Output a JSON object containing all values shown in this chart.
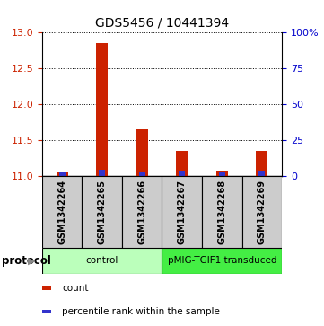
{
  "title": "GDS5456 / 10441394",
  "samples": [
    "GSM1342264",
    "GSM1342265",
    "GSM1342266",
    "GSM1342267",
    "GSM1342268",
    "GSM1342269"
  ],
  "red_values": [
    11.06,
    12.85,
    11.65,
    11.35,
    11.08,
    11.35
  ],
  "blue_values": [
    11.065,
    11.09,
    11.06,
    11.07,
    11.06,
    11.07
  ],
  "ylim": [
    11.0,
    13.0
  ],
  "yticks_left": [
    11,
    11.5,
    12,
    12.5,
    13
  ],
  "yticks_right": [
    0,
    25,
    50,
    75,
    100
  ],
  "yright_labels": [
    "0",
    "25",
    "50",
    "75",
    "100%"
  ],
  "left_color": "#cc2200",
  "right_color": "#0000cc",
  "groups": [
    {
      "label": "control",
      "indices": [
        0,
        1,
        2
      ],
      "color": "#bbffbb"
    },
    {
      "label": "pMIG-TGIF1 transduced",
      "indices": [
        3,
        4,
        5
      ],
      "color": "#44ee44"
    }
  ],
  "protocol_label": "protocol",
  "red_color": "#cc2200",
  "blue_color": "#3333cc",
  "bg_color": "#ffffff",
  "sample_bg": "#cccccc",
  "legend_items": [
    {
      "color": "#cc2200",
      "label": "count"
    },
    {
      "color": "#3333cc",
      "label": "percentile rank within the sample"
    }
  ]
}
